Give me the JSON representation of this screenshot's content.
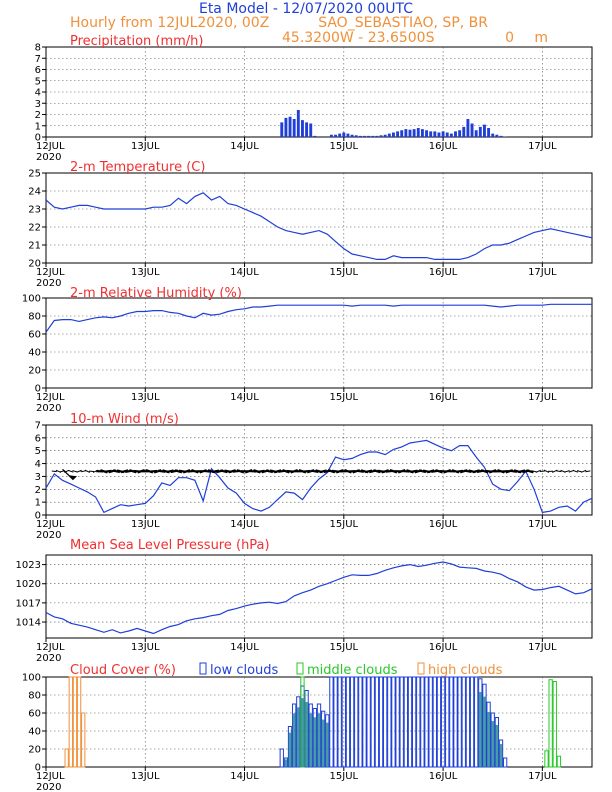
{
  "header": {
    "title": "Eta Model - 12/07/2020 00UTC",
    "subtitle": "Hourly from 12JUL2020, 00Z",
    "station": "SAO_SEBASTIAO, SP, BR",
    "coords": "45.3200W - 23.6500S",
    "elevation": "0",
    "elevation_unit": "m"
  },
  "colors": {
    "title": "#1f3fd8",
    "subtitle": "#f0903a",
    "panel_title": "#f03030",
    "line": "#1f3fd8",
    "low": "#1f3fd8",
    "middle": "#28c828",
    "high": "#f0903a"
  },
  "x_axis": {
    "start_hour": 0,
    "end_hour": 132,
    "ticks": [
      0,
      24,
      48,
      72,
      96,
      120
    ],
    "labels": [
      "12JUL",
      "13JUL",
      "14JUL",
      "15JUL",
      "16JUL",
      "17JUL"
    ],
    "year": "2020"
  },
  "chart_data": [
    {
      "type": "bar",
      "title": "Precipitation (mm/h)",
      "ylim": [
        0,
        8
      ],
      "yticks": [
        "0",
        "1",
        "2",
        "3",
        "4",
        "5",
        "6",
        "7",
        "8"
      ],
      "x": [
        57,
        58,
        59,
        60,
        61,
        62,
        63,
        64,
        65,
        69,
        70,
        71,
        72,
        73,
        74,
        75,
        76,
        77,
        78,
        79,
        80,
        81,
        82,
        83,
        84,
        85,
        86,
        87,
        88,
        89,
        90,
        91,
        92,
        93,
        94,
        95,
        96,
        97,
        98,
        99,
        100,
        101,
        102,
        103,
        104,
        105,
        106,
        107,
        108,
        109,
        110,
        111
      ],
      "values": [
        1.3,
        1.7,
        1.8,
        1.6,
        2.4,
        1.5,
        1.3,
        1.2,
        0.1,
        0.2,
        0.2,
        0.3,
        0.4,
        0.3,
        0.2,
        0.15,
        0.1,
        0.1,
        0.1,
        0.1,
        0.1,
        0.15,
        0.2,
        0.3,
        0.4,
        0.5,
        0.6,
        0.7,
        0.65,
        0.7,
        0.8,
        0.7,
        0.6,
        0.5,
        0.5,
        0.4,
        0.5,
        0.4,
        0.3,
        0.5,
        0.6,
        0.9,
        1.6,
        1.2,
        0.6,
        0.9,
        1.1,
        0.8,
        0.3,
        0.2,
        0.1,
        0.05
      ]
    },
    {
      "type": "line",
      "title": "2-m Temperature (C)",
      "ylim": [
        20,
        25
      ],
      "yticks": [
        "20",
        "21",
        "22",
        "23",
        "24",
        "25"
      ],
      "x": [
        0,
        2,
        4,
        6,
        8,
        10,
        12,
        14,
        16,
        18,
        20,
        22,
        24,
        26,
        28,
        30,
        32,
        34,
        36,
        38,
        40,
        42,
        44,
        46,
        48,
        50,
        52,
        54,
        56,
        58,
        60,
        62,
        64,
        66,
        68,
        70,
        72,
        74,
        76,
        78,
        80,
        82,
        84,
        86,
        88,
        90,
        92,
        94,
        96,
        98,
        100,
        102,
        104,
        106,
        108,
        110,
        112,
        114,
        116,
        118,
        120,
        122,
        124,
        126,
        128,
        130,
        132
      ],
      "values": [
        23.5,
        23.1,
        23.0,
        23.1,
        23.2,
        23.2,
        23.1,
        23.0,
        23.0,
        23.0,
        23.0,
        23.0,
        23.0,
        23.1,
        23.1,
        23.2,
        23.6,
        23.3,
        23.7,
        23.9,
        23.5,
        23.7,
        23.3,
        23.2,
        23.0,
        22.8,
        22.6,
        22.3,
        22.0,
        21.8,
        21.7,
        21.6,
        21.7,
        21.8,
        21.6,
        21.2,
        20.8,
        20.5,
        20.4,
        20.3,
        20.2,
        20.2,
        20.4,
        20.3,
        20.3,
        20.3,
        20.3,
        20.2,
        20.2,
        20.2,
        20.2,
        20.3,
        20.5,
        20.8,
        21.0,
        21.0,
        21.1,
        21.3,
        21.5,
        21.7,
        21.8,
        21.9,
        21.8,
        21.7,
        21.6,
        21.5,
        21.4
      ]
    },
    {
      "type": "line",
      "title": "2-m Relative Humidity (%)",
      "ylim": [
        0,
        100
      ],
      "yticks": [
        "0",
        "20",
        "40",
        "60",
        "80",
        "100"
      ],
      "x": [
        0,
        2,
        4,
        6,
        8,
        10,
        12,
        14,
        16,
        18,
        20,
        22,
        24,
        26,
        28,
        30,
        32,
        34,
        36,
        38,
        40,
        42,
        44,
        46,
        48,
        50,
        52,
        54,
        56,
        58,
        60,
        62,
        64,
        66,
        68,
        70,
        72,
        74,
        76,
        78,
        80,
        82,
        84,
        86,
        88,
        90,
        92,
        94,
        96,
        98,
        100,
        102,
        104,
        106,
        108,
        110,
        112,
        114,
        116,
        118,
        120,
        122,
        124,
        126,
        128,
        130,
        132
      ],
      "values": [
        62,
        75,
        76,
        76,
        74,
        76,
        78,
        79,
        78,
        80,
        83,
        85,
        85,
        86,
        86,
        84,
        83,
        80,
        78,
        83,
        81,
        82,
        85,
        87,
        88,
        90,
        90,
        91,
        92,
        92,
        92,
        92,
        92,
        92,
        92,
        92,
        92,
        91,
        92,
        92,
        92,
        92,
        91,
        92,
        92,
        92,
        92,
        92,
        92,
        92,
        92,
        92,
        92,
        92,
        91,
        90,
        91,
        92,
        92,
        92,
        92,
        93,
        93,
        93,
        93,
        93,
        93
      ]
    },
    {
      "type": "line",
      "title": "10-m Wind (m/s)",
      "ylim": [
        0,
        7
      ],
      "yticks": [
        "0",
        "1",
        "2",
        "3",
        "4",
        "5",
        "6",
        "7"
      ],
      "x": [
        0,
        2,
        4,
        6,
        8,
        10,
        12,
        14,
        16,
        18,
        20,
        22,
        24,
        26,
        28,
        30,
        32,
        34,
        36,
        38,
        40,
        42,
        44,
        46,
        48,
        50,
        52,
        54,
        56,
        58,
        60,
        62,
        64,
        66,
        68,
        70,
        72,
        74,
        76,
        78,
        80,
        82,
        84,
        86,
        88,
        90,
        92,
        94,
        96,
        98,
        100,
        102,
        104,
        106,
        108,
        110,
        112,
        114,
        116,
        118,
        120,
        122,
        124,
        126,
        128,
        130,
        132
      ],
      "values": [
        2.1,
        3.2,
        2.7,
        2.4,
        2.1,
        1.8,
        1.4,
        0.2,
        0.5,
        0.8,
        0.7,
        0.8,
        0.9,
        1.5,
        2.5,
        2.3,
        2.9,
        2.9,
        2.7,
        1.1,
        3.6,
        2.9,
        2.1,
        1.7,
        0.9,
        0.5,
        0.3,
        0.6,
        1.2,
        1.8,
        1.7,
        1.2,
        2.1,
        2.8,
        3.3,
        4.5,
        4.3,
        4.4,
        4.7,
        4.9,
        4.9,
        4.7,
        5.1,
        5.3,
        5.6,
        5.7,
        5.8,
        5.5,
        5.2,
        5.0,
        5.4,
        5.4,
        4.5,
        3.7,
        2.4,
        2.0,
        1.9,
        2.6,
        3.4,
        2.0,
        0.2,
        0.3,
        0.6,
        0.7,
        0.3,
        1.0,
        1.3
      ]
    },
    {
      "type": "line",
      "title": "Mean Sea Level Pressure (hPa)",
      "ylim": [
        1011.5,
        1024.5
      ],
      "yticks": [
        "1014",
        "1017",
        "1020",
        "1023"
      ],
      "x": [
        0,
        2,
        4,
        6,
        8,
        10,
        12,
        14,
        16,
        18,
        20,
        22,
        24,
        26,
        28,
        30,
        32,
        34,
        36,
        38,
        40,
        42,
        44,
        46,
        48,
        50,
        52,
        54,
        56,
        58,
        60,
        62,
        64,
        66,
        68,
        70,
        72,
        74,
        76,
        78,
        80,
        82,
        84,
        86,
        88,
        90,
        92,
        94,
        96,
        98,
        100,
        102,
        104,
        106,
        108,
        110,
        112,
        114,
        116,
        118,
        120,
        122,
        124,
        126,
        128,
        130,
        132
      ],
      "values": [
        1015.5,
        1014.8,
        1014.5,
        1013.8,
        1013.5,
        1013.2,
        1012.8,
        1012.4,
        1012.8,
        1012.3,
        1012.6,
        1013.0,
        1012.6,
        1012.2,
        1012.8,
        1013.3,
        1013.6,
        1014.2,
        1014.5,
        1014.7,
        1015.0,
        1015.2,
        1015.8,
        1016.1,
        1016.5,
        1016.8,
        1017.0,
        1017.1,
        1016.9,
        1017.2,
        1018.1,
        1018.6,
        1019.0,
        1019.6,
        1020.0,
        1020.5,
        1021.0,
        1021.4,
        1021.3,
        1021.3,
        1021.6,
        1022.1,
        1022.5,
        1022.8,
        1023.0,
        1022.7,
        1022.9,
        1023.2,
        1023.4,
        1023.1,
        1022.6,
        1022.5,
        1022.4,
        1022.0,
        1021.8,
        1021.5,
        1020.8,
        1020.3,
        1019.5,
        1019.0,
        1019.1,
        1019.4,
        1019.6,
        1019.0,
        1018.4,
        1018.6,
        1019.2
      ]
    },
    {
      "type": "bar",
      "title": "Cloud Cover (%)",
      "ylim": [
        0,
        100
      ],
      "yticks": [
        "0",
        "20",
        "40",
        "60",
        "80",
        "100"
      ],
      "legend": {
        "low": "low clouds",
        "middle": "middle clouds",
        "high": "high clouds"
      },
      "series": [
        {
          "name": "low clouds",
          "x": [
            57,
            58,
            59,
            60,
            61,
            62,
            63,
            64,
            65,
            66,
            67,
            68,
            69,
            70,
            71,
            72,
            73,
            74,
            75,
            76,
            77,
            78,
            79,
            80,
            81,
            82,
            83,
            84,
            85,
            86,
            87,
            88,
            89,
            90,
            91,
            92,
            93,
            94,
            95,
            96,
            97,
            98,
            99,
            100,
            101,
            102,
            103,
            104,
            105,
            106,
            107,
            108,
            109,
            110,
            111
          ],
          "values": [
            20,
            10,
            45,
            70,
            78,
            90,
            85,
            70,
            65,
            70,
            62,
            58,
            100,
            100,
            100,
            100,
            100,
            100,
            100,
            100,
            100,
            100,
            100,
            100,
            100,
            100,
            100,
            100,
            100,
            100,
            100,
            100,
            100,
            100,
            100,
            100,
            100,
            100,
            100,
            100,
            100,
            100,
            100,
            100,
            100,
            100,
            100,
            100,
            98,
            92,
            72,
            60,
            55,
            30,
            10
          ]
        },
        {
          "name": "middle clouds",
          "x": [
            62,
            121,
            122,
            123,
            124
          ],
          "values": [
            100,
            18,
            97,
            95,
            12
          ]
        },
        {
          "name": "high clouds",
          "x": [
            5,
            6,
            7,
            8,
            9
          ],
          "values": [
            20,
            100,
            100,
            100,
            60
          ]
        }
      ]
    }
  ]
}
